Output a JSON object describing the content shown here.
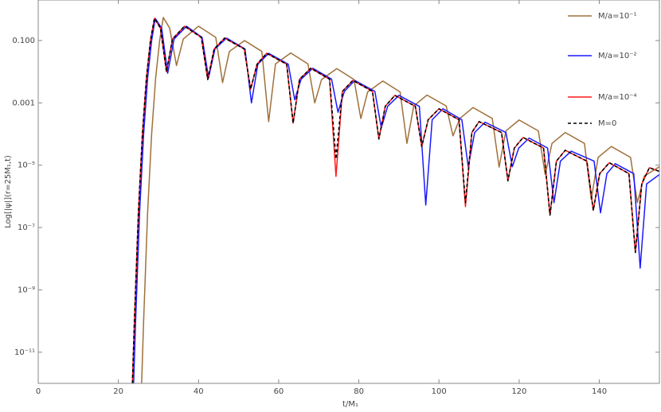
{
  "chart_data": {
    "type": "line",
    "xlabel": "t/M₁",
    "ylabel": "Log[|ψ|](r=25M₁,t)",
    "xlim": [
      0,
      155
    ],
    "xticks": [
      0,
      20,
      40,
      60,
      80,
      100,
      120,
      140
    ],
    "yscale": "log",
    "ylim": [
      1e-12,
      2
    ],
    "yticks": [
      {
        "value": 0.1,
        "label": "0.100"
      },
      {
        "value": 0.001,
        "label": "0.001"
      },
      {
        "value": 1e-05,
        "label": "10⁻⁵"
      },
      {
        "value": 1e-07,
        "label": "10⁻⁷"
      },
      {
        "value": 1e-09,
        "label": "10⁻⁹"
      },
      {
        "value": 1e-11,
        "label": "10⁻¹¹"
      }
    ],
    "legend": "top-right",
    "series": [
      {
        "name": "M/a=10⁻¹",
        "color": "#a0703a",
        "linestyle": "solid",
        "x": [
          25.8,
          26.3,
          27.3,
          28.3,
          29.3,
          30.3,
          31.2,
          32.8,
          34.5,
          36.2,
          40,
          44.3,
          46,
          47.7,
          51.5,
          55.8,
          57.5,
          59.2,
          63,
          67.3,
          69,
          70.7,
          74.5,
          78.8,
          80.5,
          82.2,
          86,
          90.3,
          92,
          93.7,
          97,
          101.8,
          103.5,
          105.2,
          108.5,
          113.3,
          115,
          116.7,
          120,
          124.8,
          126.5,
          128.2,
          131.5,
          136.3,
          138,
          139.7,
          143,
          147.8,
          149.5,
          151.2,
          155
        ],
        "values": [
          1e-12,
          1e-10,
          3.16e-07,
          0.0001,
          0.00631,
          0.1,
          0.55,
          0.251,
          0.0158,
          0.112,
          0.288,
          0.126,
          0.00447,
          0.0447,
          0.1,
          0.0447,
          0.000251,
          0.0178,
          0.0398,
          0.0178,
          0.001,
          0.00562,
          0.0126,
          0.00562,
          0.000316,
          0.00224,
          0.00501,
          0.00224,
          5.01e-05,
          0.000794,
          0.00178,
          0.000794,
          8.71e-05,
          0.000316,
          0.000708,
          0.000316,
          8.71e-06,
          0.000126,
          0.000282,
          0.000126,
          5.01e-06,
          5.01e-05,
          0.000112,
          5.01e-05,
          7.94e-07,
          1.78e-05,
          3.98e-05,
          1.78e-05,
          6.31e-07,
          4.47e-06,
          8.91e-06
        ]
      },
      {
        "name": "M/a=10⁻²",
        "color": "#1a1aff",
        "linestyle": "solid",
        "x": [
          23.8,
          24.3,
          25.3,
          26.3,
          27.3,
          28.3,
          29.2,
          30.8,
          32.3,
          33.9,
          37,
          40.9,
          42.5,
          44.1,
          47,
          51.6,
          53.2,
          54.8,
          57.5,
          62.4,
          64,
          65.6,
          68.5,
          73.2,
          74.8,
          76.4,
          79,
          84,
          85.6,
          87.2,
          90,
          95.1,
          96.7,
          98.3,
          101,
          105.7,
          107.3,
          108.9,
          111.5,
          116.7,
          118.3,
          119.9,
          122.5,
          127.1,
          128.7,
          130.3,
          133,
          138.7,
          140.3,
          141.9,
          144,
          148.6,
          150.2,
          151.8,
          155
        ],
        "values": [
          1e-12,
          1e-10,
          3.16e-07,
          0.0001,
          0.00631,
          0.1,
          0.513,
          0.251,
          0.00891,
          0.112,
          0.288,
          0.126,
          0.00631,
          0.0537,
          0.12,
          0.0537,
          0.001,
          0.0174,
          0.0389,
          0.0174,
          0.00126,
          0.00575,
          0.0129,
          0.00575,
          0.000501,
          0.00234,
          0.00525,
          0.00234,
          0.000158,
          0.000776,
          0.00174,
          0.000776,
          5.25e-07,
          0.000288,
          0.000646,
          0.000288,
          8.91e-06,
          0.000112,
          0.00024,
          0.000112,
          8.91e-06,
          3.55e-05,
          7.41e-05,
          3.55e-05,
          6.31e-07,
          1.35e-05,
          2.82e-05,
          1.35e-05,
          2.95e-07,
          5.37e-06,
          1.12e-05,
          5.37e-06,
          5.01e-09,
          2.51e-06,
          5.01e-06
        ]
      },
      {
        "name": "M/a=10⁻⁴",
        "color": "#ff1a1a",
        "linestyle": "solid",
        "x": [
          23.5,
          24,
          25,
          26,
          27,
          28,
          29,
          30.5,
          32,
          33.5,
          36.5,
          40.7,
          42.3,
          43.9,
          46.5,
          51.4,
          53,
          54.6,
          57,
          62,
          63.6,
          65.2,
          68,
          72.7,
          74.3,
          75.9,
          78.5,
          83.4,
          85,
          86.6,
          89,
          94.1,
          95.7,
          97.3,
          100,
          105,
          106.6,
          108.2,
          110,
          115.6,
          117.2,
          118.8,
          121,
          126.1,
          127.7,
          129.3,
          131.5,
          136.9,
          138.5,
          140.1,
          142.5,
          147.4,
          149,
          150.6,
          152.5,
          155
        ],
        "values": [
          1e-12,
          1e-10,
          3.16e-07,
          0.0001,
          0.00631,
          0.1,
          0.513,
          0.251,
          0.01,
          0.112,
          0.288,
          0.126,
          0.00562,
          0.0537,
          0.12,
          0.0537,
          0.00275,
          0.0174,
          0.0389,
          0.0174,
          0.000224,
          0.00575,
          0.0129,
          0.00575,
          4.37e-06,
          0.00234,
          0.00525,
          0.00234,
          6.92e-05,
          0.000776,
          0.00174,
          0.000776,
          3.98e-05,
          0.000288,
          0.000646,
          0.000288,
          4.68e-07,
          0.000112,
          0.000251,
          0.000112,
          3.16e-06,
          3.55e-05,
          7.76e-05,
          3.55e-05,
          2.51e-07,
          1.35e-05,
          3.02e-05,
          1.35e-05,
          3.55e-07,
          5.37e-06,
          1.2e-05,
          5.37e-06,
          1.58e-08,
          2.51e-06,
          8.32e-06,
          6.31e-06
        ]
      },
      {
        "name": "M=0",
        "color": "#000000",
        "linestyle": "dashed",
        "x": [
          23.5,
          24,
          25,
          26,
          27,
          28,
          29,
          30.5,
          32,
          33.5,
          36.5,
          40.7,
          42.3,
          43.9,
          46.5,
          51.4,
          53,
          54.6,
          57,
          62,
          63.6,
          65.2,
          68,
          72.7,
          74.3,
          75.9,
          78.5,
          83.4,
          85,
          86.6,
          89,
          94.1,
          95.7,
          97.3,
          100,
          105,
          106.6,
          108.2,
          110,
          115.6,
          117.2,
          118.8,
          121,
          126.1,
          127.7,
          129.3,
          131.5,
          136.9,
          138.5,
          140.1,
          142.5,
          147.4,
          149,
          150.6,
          152.5,
          155
        ],
        "values": [
          1e-12,
          1e-10,
          3.16e-07,
          0.0001,
          0.00631,
          0.1,
          0.513,
          0.251,
          0.01,
          0.112,
          0.288,
          0.126,
          0.00562,
          0.0537,
          0.12,
          0.0537,
          0.00275,
          0.0174,
          0.0389,
          0.0174,
          0.000224,
          0.00575,
          0.0129,
          0.00575,
          1.58e-05,
          0.00234,
          0.00525,
          0.00234,
          6.92e-05,
          0.000776,
          0.00174,
          0.000776,
          3.98e-05,
          0.000288,
          0.000646,
          0.000288,
          6.31e-07,
          0.000112,
          0.000251,
          0.000112,
          3.16e-06,
          3.55e-05,
          7.76e-05,
          3.55e-05,
          2.51e-07,
          1.35e-05,
          3.02e-05,
          1.35e-05,
          3.55e-07,
          5.37e-06,
          1.2e-05,
          5.37e-06,
          1.58e-08,
          2.51e-06,
          8.32e-06,
          6.31e-06
        ]
      }
    ]
  }
}
